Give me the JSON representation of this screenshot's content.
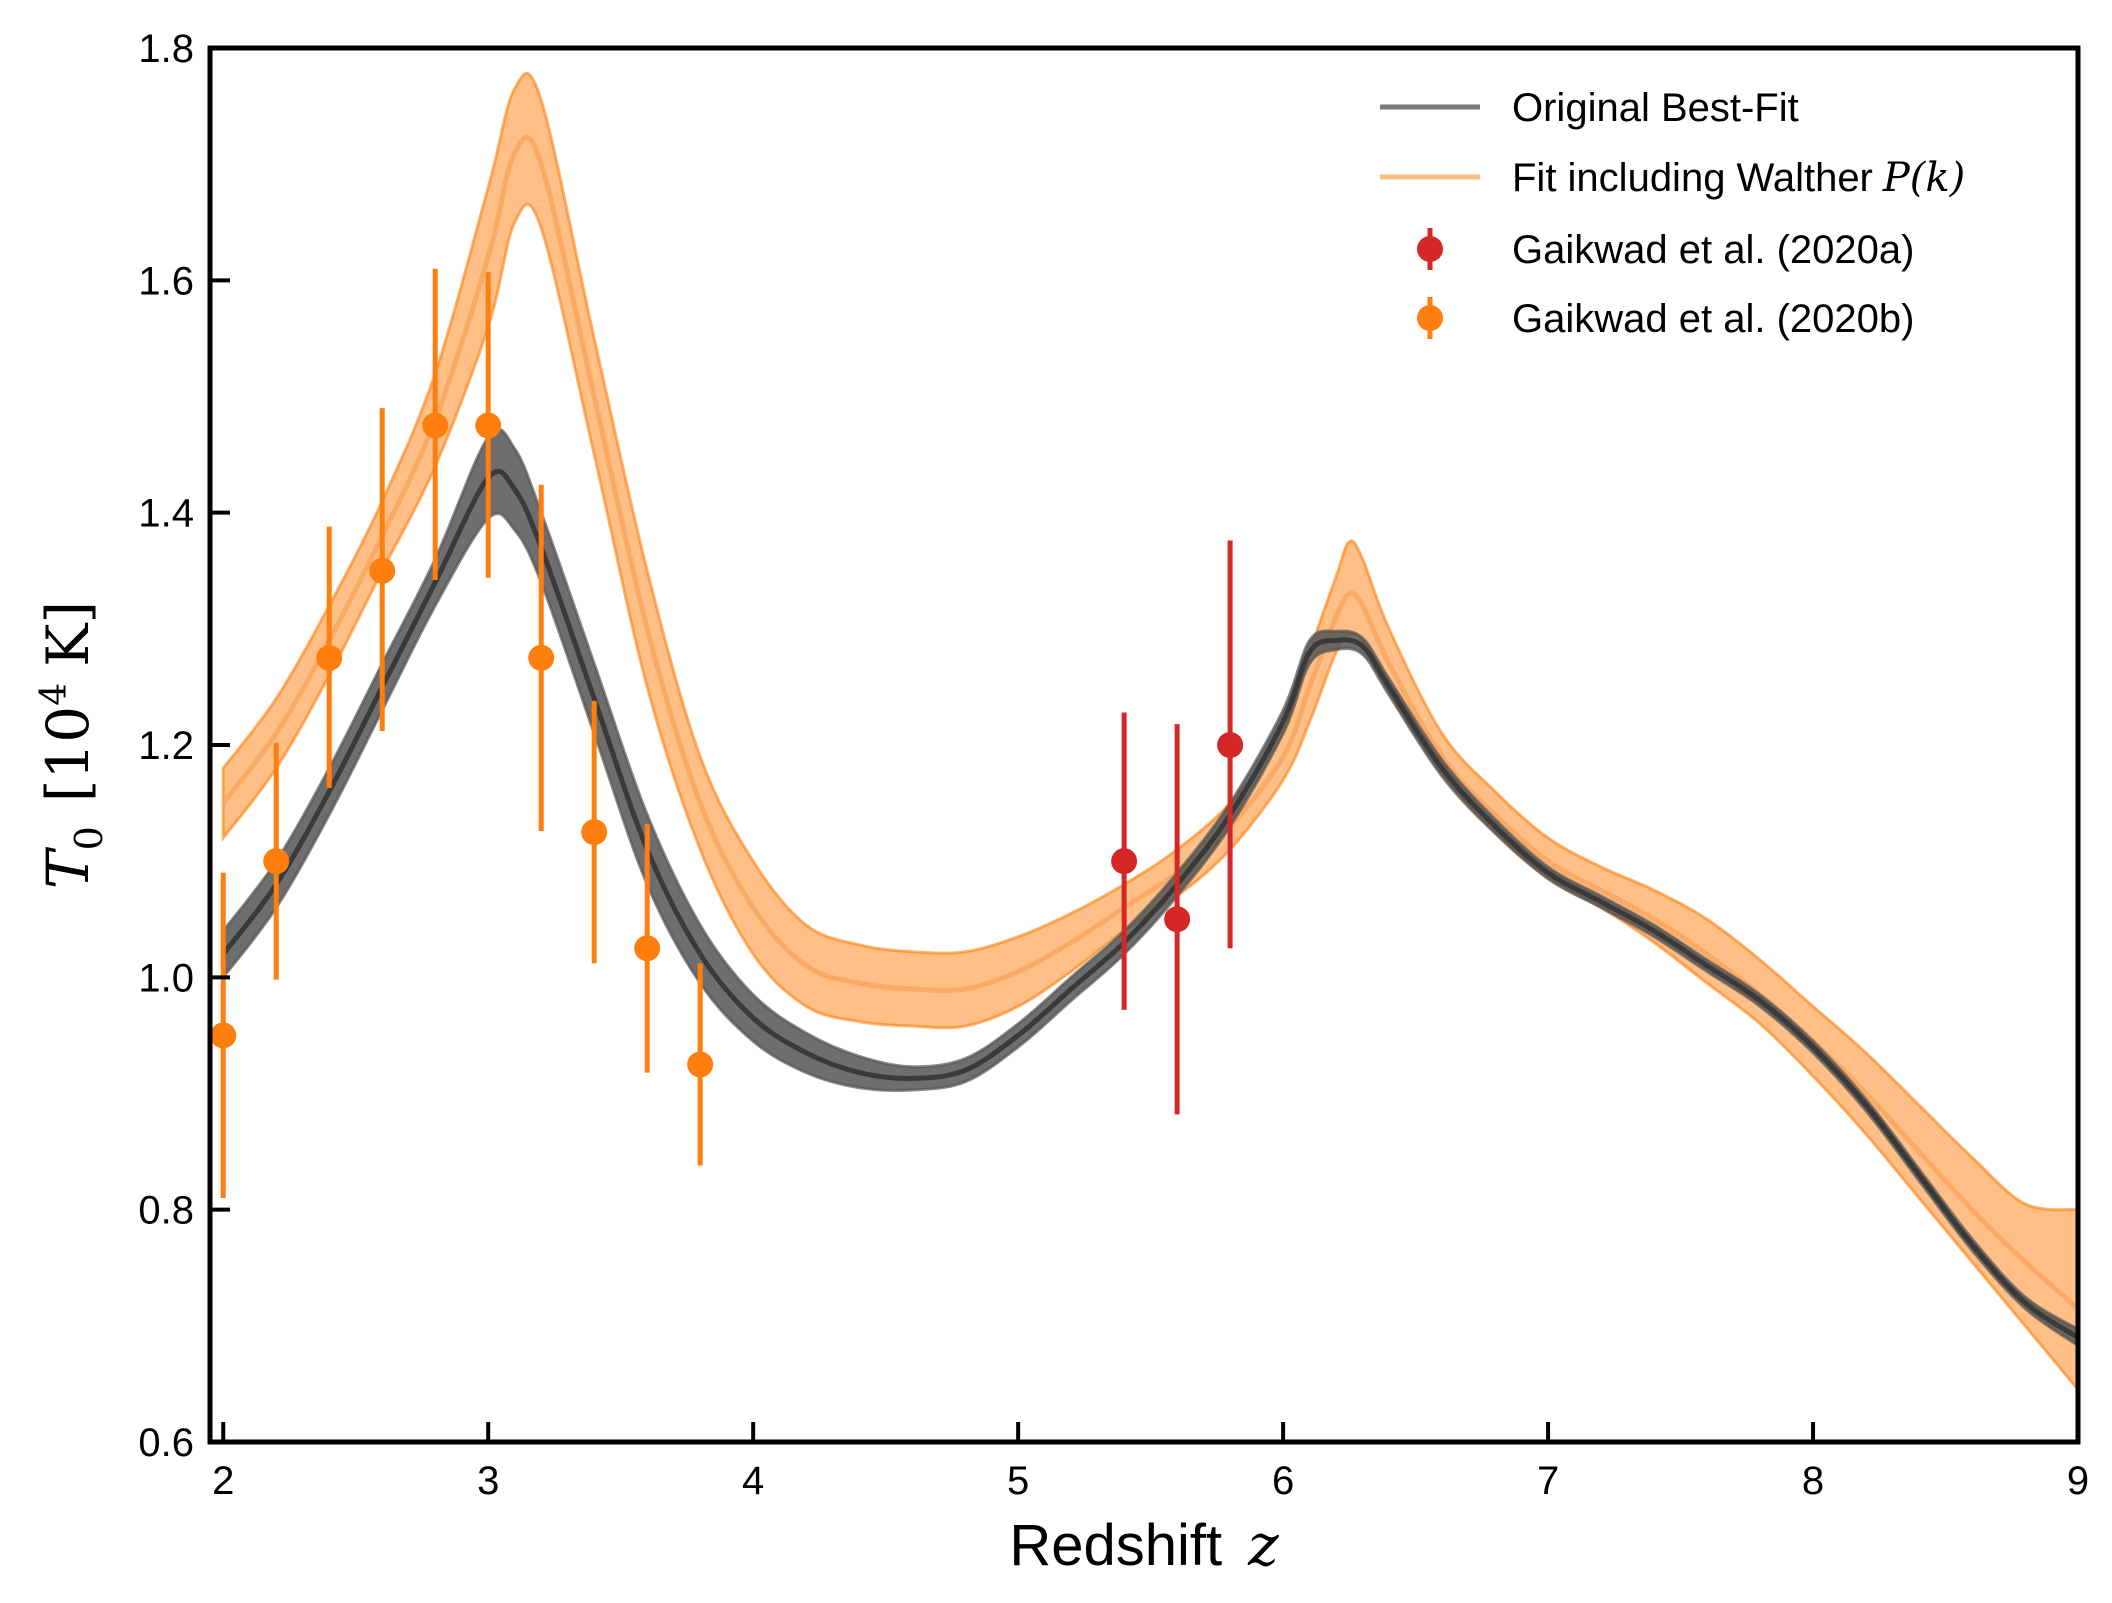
{
  "chart_data": {
    "type": "line",
    "xlabel": "Redshift",
    "xlabel_symbol": "z",
    "ylabel_symbol": "T",
    "ylabel_subscript": "0",
    "ylabel_unit_base": "10",
    "ylabel_unit_exp": "4",
    "ylabel_unit": "K",
    "xlim": [
      1.95,
      9
    ],
    "ylim": [
      0.6,
      1.8
    ],
    "x_ticks": [
      2,
      3,
      4,
      5,
      6,
      7,
      8,
      9
    ],
    "y_ticks": [
      0.6,
      0.8,
      1.0,
      1.2,
      1.4,
      1.6,
      1.8
    ],
    "x_tick_labels": [
      "2",
      "3",
      "4",
      "5",
      "6",
      "7",
      "8",
      "9"
    ],
    "y_tick_labels": [
      "0.6",
      "0.8",
      "1.0",
      "1.2",
      "1.4",
      "1.6",
      "1.8"
    ],
    "grid": false,
    "legend_position": "top-right",
    "series": [
      {
        "name": "Original Best-Fit",
        "kind": "band-line",
        "line_color": "#3a3a3a",
        "band_color": "#555555",
        "x": [
          2.0,
          2.2,
          2.4,
          2.6,
          2.8,
          3.0,
          3.1,
          3.2,
          3.4,
          3.6,
          3.8,
          4.0,
          4.2,
          4.4,
          4.6,
          4.8,
          5.0,
          5.2,
          5.4,
          5.6,
          5.8,
          6.0,
          6.1,
          6.2,
          6.3,
          6.4,
          6.6,
          6.8,
          7.0,
          7.2,
          7.4,
          7.6,
          7.8,
          8.0,
          8.2,
          8.4,
          8.6,
          8.8,
          9.0
        ],
        "y": [
          1.02,
          1.08,
          1.16,
          1.25,
          1.34,
          1.43,
          1.42,
          1.37,
          1.24,
          1.11,
          1.02,
          0.965,
          0.935,
          0.918,
          0.913,
          0.92,
          0.95,
          0.99,
          1.03,
          1.08,
          1.14,
          1.22,
          1.28,
          1.29,
          1.285,
          1.25,
          1.18,
          1.13,
          1.09,
          1.065,
          1.04,
          1.01,
          0.98,
          0.94,
          0.89,
          0.83,
          0.77,
          0.72,
          0.69
        ],
        "y_low": [
          1.0,
          1.06,
          1.14,
          1.23,
          1.32,
          1.395,
          1.385,
          1.34,
          1.21,
          1.08,
          0.995,
          0.945,
          0.918,
          0.905,
          0.903,
          0.91,
          0.94,
          0.98,
          1.02,
          1.07,
          1.13,
          1.21,
          1.27,
          1.282,
          1.278,
          1.243,
          1.173,
          1.124,
          1.085,
          1.06,
          1.035,
          1.005,
          0.975,
          0.935,
          0.885,
          0.825,
          0.765,
          0.715,
          0.683
        ],
        "y_high": [
          1.04,
          1.1,
          1.18,
          1.27,
          1.36,
          1.465,
          1.455,
          1.4,
          1.27,
          1.14,
          1.045,
          0.985,
          0.952,
          0.932,
          0.923,
          0.93,
          0.96,
          1.0,
          1.04,
          1.09,
          1.15,
          1.23,
          1.29,
          1.298,
          1.292,
          1.257,
          1.187,
          1.136,
          1.095,
          1.07,
          1.045,
          1.015,
          0.985,
          0.945,
          0.895,
          0.835,
          0.775,
          0.725,
          0.697
        ]
      },
      {
        "name": "Fit including Walther",
        "name_math": "P(k)",
        "kind": "band-line",
        "line_color": "#f9a65e",
        "band_color": "#ff7f0e",
        "x": [
          2.0,
          2.2,
          2.4,
          2.6,
          2.8,
          3.0,
          3.1,
          3.2,
          3.4,
          3.6,
          3.8,
          4.0,
          4.2,
          4.4,
          4.6,
          4.8,
          5.0,
          5.2,
          5.4,
          5.6,
          5.8,
          6.0,
          6.1,
          6.2,
          6.25,
          6.3,
          6.4,
          6.6,
          6.8,
          7.0,
          7.2,
          7.4,
          7.6,
          7.8,
          8.0,
          8.2,
          8.4,
          8.6,
          8.8,
          9.0
        ],
        "y": [
          1.15,
          1.21,
          1.29,
          1.38,
          1.48,
          1.62,
          1.71,
          1.7,
          1.5,
          1.3,
          1.15,
          1.06,
          1.01,
          0.995,
          0.99,
          0.99,
          1.005,
          1.03,
          1.06,
          1.09,
          1.13,
          1.19,
          1.25,
          1.31,
          1.33,
          1.32,
          1.27,
          1.19,
          1.14,
          1.1,
          1.075,
          1.05,
          1.02,
          0.985,
          0.945,
          0.9,
          0.85,
          0.8,
          0.755,
          0.715
        ],
        "y_low": [
          1.12,
          1.18,
          1.26,
          1.35,
          1.44,
          1.56,
          1.65,
          1.645,
          1.45,
          1.25,
          1.11,
          1.02,
          0.975,
          0.962,
          0.958,
          0.958,
          0.975,
          1.005,
          1.04,
          1.07,
          1.11,
          1.17,
          1.22,
          1.28,
          1.295,
          1.29,
          1.245,
          1.175,
          1.125,
          1.085,
          1.06,
          1.03,
          0.995,
          0.96,
          0.915,
          0.865,
          0.81,
          0.755,
          0.7,
          0.645
        ],
        "y_high": [
          1.18,
          1.24,
          1.32,
          1.41,
          1.52,
          1.68,
          1.765,
          1.755,
          1.55,
          1.35,
          1.19,
          1.1,
          1.045,
          1.028,
          1.022,
          1.022,
          1.035,
          1.055,
          1.08,
          1.11,
          1.15,
          1.21,
          1.28,
          1.345,
          1.375,
          1.36,
          1.3,
          1.21,
          1.16,
          1.12,
          1.095,
          1.075,
          1.05,
          1.015,
          0.975,
          0.935,
          0.89,
          0.845,
          0.805,
          0.8
        ]
      },
      {
        "name": "Gaikwad et al. (2020a)",
        "kind": "errorbar",
        "color": "#d62728",
        "points": [
          {
            "x": 5.4,
            "y": 1.1,
            "lo": 0.972,
            "hi": 1.228
          },
          {
            "x": 5.6,
            "y": 1.05,
            "lo": 0.882,
            "hi": 1.218
          },
          {
            "x": 5.8,
            "y": 1.2,
            "lo": 1.025,
            "hi": 1.376
          }
        ]
      },
      {
        "name": "Gaikwad et al. (2020b)",
        "kind": "errorbar",
        "color": "#ff7f0e",
        "points": [
          {
            "x": 2.0,
            "y": 0.95,
            "lo": 0.81,
            "hi": 1.09
          },
          {
            "x": 2.2,
            "y": 1.1,
            "lo": 0.998,
            "hi": 1.202
          },
          {
            "x": 2.4,
            "y": 1.275,
            "lo": 1.163,
            "hi": 1.388
          },
          {
            "x": 2.6,
            "y": 1.35,
            "lo": 1.212,
            "hi": 1.49
          },
          {
            "x": 2.8,
            "y": 1.475,
            "lo": 1.342,
            "hi": 1.61
          },
          {
            "x": 3.0,
            "y": 1.475,
            "lo": 1.344,
            "hi": 1.607
          },
          {
            "x": 3.2,
            "y": 1.275,
            "lo": 1.126,
            "hi": 1.424
          },
          {
            "x": 3.4,
            "y": 1.125,
            "lo": 1.012,
            "hi": 1.238
          },
          {
            "x": 3.6,
            "y": 1.025,
            "lo": 0.918,
            "hi": 1.132
          },
          {
            "x": 3.8,
            "y": 0.925,
            "lo": 0.838,
            "hi": 1.012
          }
        ]
      }
    ]
  }
}
